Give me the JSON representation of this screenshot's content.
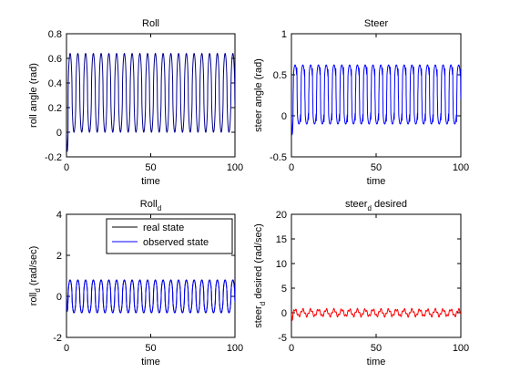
{
  "chart_data": [
    {
      "type": "line",
      "title": "Roll",
      "xlabel": "time",
      "ylabel": "roll angle (rad)",
      "xlim": [
        0,
        100
      ],
      "ylim": [
        -0.2,
        0.8
      ],
      "xticks": [
        "0",
        "50",
        "100"
      ],
      "yticks": [
        "-0.2",
        "0",
        "0.2",
        "0.4",
        "0.6",
        "0.8"
      ],
      "grid": false,
      "series": [
        {
          "color": "#00008b",
          "signal": {
            "kind": "oscillation",
            "start": 0.0,
            "initial_dip": -0.15,
            "low": 0.0,
            "high": 0.64,
            "period": 4.6,
            "t_end": 100
          }
        }
      ]
    },
    {
      "type": "line",
      "title": "Steer",
      "xlabel": "time",
      "ylabel": "steer angle (rad)",
      "xlim": [
        0,
        100
      ],
      "ylim": [
        -0.5,
        1.0
      ],
      "xticks": [
        "0",
        "50",
        "100"
      ],
      "yticks": [
        "-0.5",
        "0",
        "0.5",
        "1"
      ],
      "grid": false,
      "series": [
        {
          "color": "#0000ff",
          "signal": {
            "kind": "spiky",
            "start": 0.0,
            "initial_dip": -0.22,
            "low": -0.1,
            "high": 0.62,
            "period": 4.6,
            "t_end": 100
          }
        }
      ]
    },
    {
      "type": "line",
      "title_main": "Roll",
      "title_sub": "d",
      "xlabel": "time",
      "ylabel_main": "roll",
      "ylabel_sub": "d",
      "ylabel_rest": " (rad/sec)",
      "xlim": [
        0,
        100
      ],
      "ylim": [
        -2,
        4
      ],
      "xticks": [
        "0",
        "50",
        "100"
      ],
      "yticks": [
        "-2",
        "0",
        "2",
        "4"
      ],
      "grid": false,
      "legend": {
        "placement": "top-right",
        "entries": [
          "real state",
          "observed state"
        ]
      },
      "series": [
        {
          "name": "real state",
          "color": "#000000",
          "signal": {
            "kind": "oscillation",
            "start": 0.0,
            "initial_dip": -0.7,
            "low": -0.8,
            "high": 0.8,
            "period": 4.6,
            "t_end": 100
          }
        },
        {
          "name": "observed state",
          "color": "#0000ff",
          "signal": {
            "kind": "oscillation",
            "start": 0.0,
            "initial_dip": -0.7,
            "low": -0.8,
            "high": 0.8,
            "period": 4.6,
            "t_end": 100
          }
        }
      ]
    },
    {
      "type": "line",
      "title_main": "steer",
      "title_sub": "d",
      "title_rest": " desired",
      "xlabel": "time",
      "ylabel_main": "steer",
      "ylabel_sub": "d",
      "ylabel_rest": " desired (rad/sec)",
      "xlim": [
        0,
        100
      ],
      "ylim": [
        -5,
        20
      ],
      "xticks": [
        "0",
        "50",
        "100"
      ],
      "yticks": [
        "-5",
        "0",
        "5",
        "10",
        "15",
        "20"
      ],
      "grid": false,
      "series": [
        {
          "color": "#ff0000",
          "signal": {
            "kind": "noisy",
            "start": 0.0,
            "initial_dip": -1.5,
            "low": -0.9,
            "high": 0.9,
            "period": 4.6,
            "t_end": 100
          }
        }
      ]
    }
  ]
}
